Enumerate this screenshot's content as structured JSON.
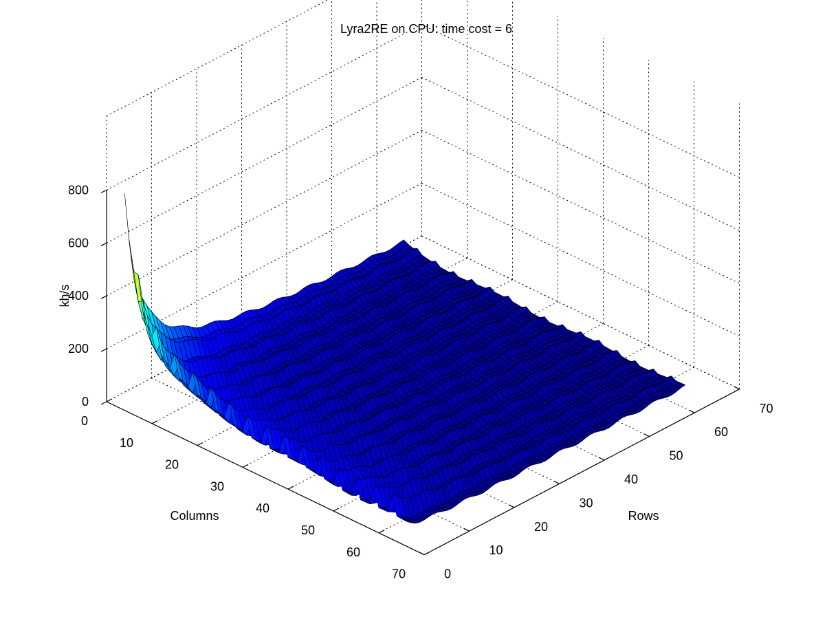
{
  "chart_data": {
    "type": "surface",
    "title": "Lyra2RE on CPU: time cost = 6",
    "xlabel": "Rows",
    "ylabel": "Columns",
    "zlabel": "kh/s",
    "x_ticks": [
      "0",
      "10",
      "20",
      "30",
      "40",
      "50",
      "60",
      "70"
    ],
    "y_ticks": [
      "0",
      "10",
      "20",
      "30",
      "40",
      "50",
      "60",
      "70"
    ],
    "z_ticks": [
      "0",
      "200",
      "400",
      "600",
      "800"
    ],
    "xlim": [
      0,
      70
    ],
    "ylim": [
      0,
      70
    ],
    "zlim": [
      0,
      800
    ],
    "rows_range": [
      2,
      64
    ],
    "columns_range": [
      2,
      64
    ],
    "colormap": "jet",
    "grid": true,
    "peak": {
      "rows": 2,
      "columns": 2,
      "value": 770
    },
    "value_model": "approx. inversely proportional to rows x columns, with periodic spikes every 4 columns"
  }
}
